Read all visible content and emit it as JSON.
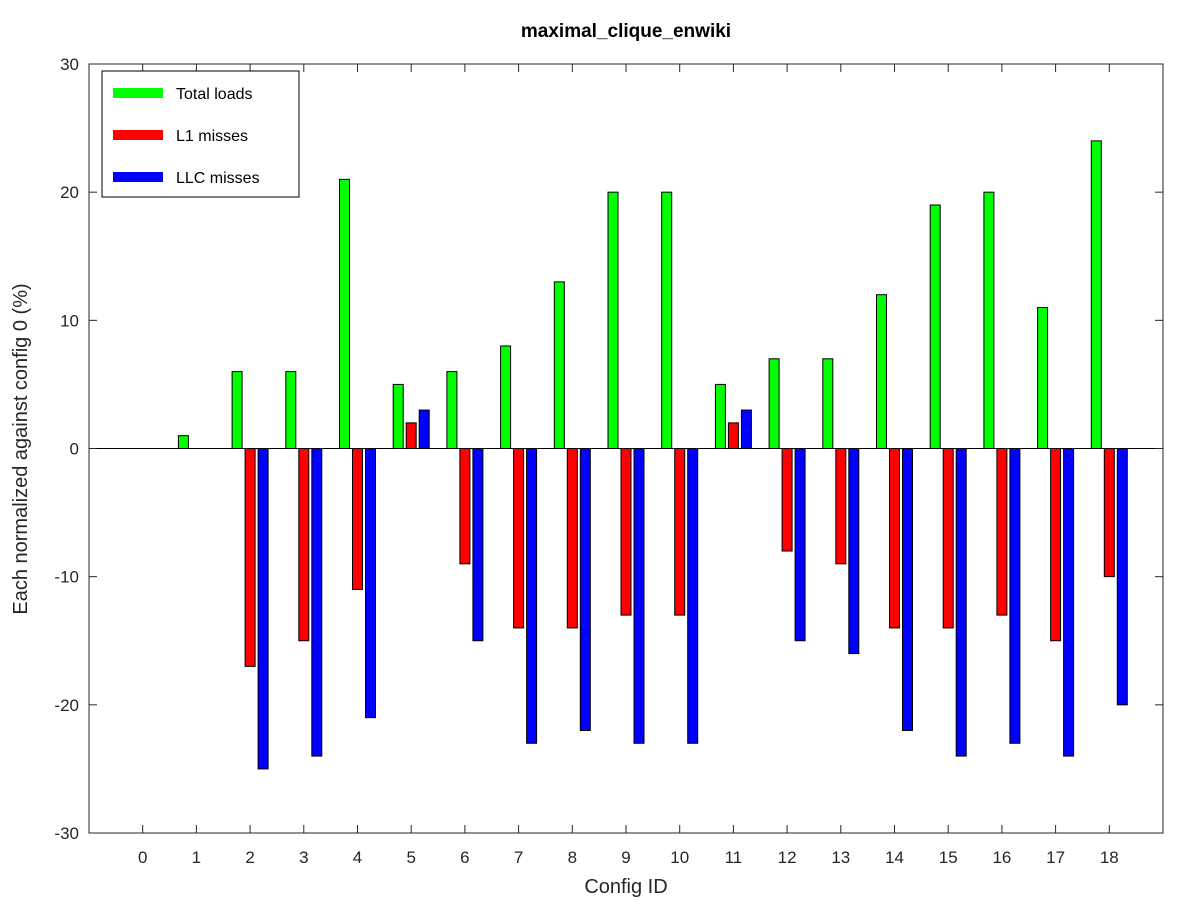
{
  "chart_data": {
    "type": "bar",
    "title": "maximal_clique_enwiki",
    "xlabel": "Config ID",
    "ylabel": "Each normalized against config 0 (%)",
    "categories": [
      "0",
      "1",
      "2",
      "3",
      "4",
      "5",
      "6",
      "7",
      "8",
      "9",
      "10",
      "11",
      "12",
      "13",
      "14",
      "15",
      "16",
      "17",
      "18"
    ],
    "ylim": [
      -30,
      30
    ],
    "yticks": [
      -30,
      -20,
      -10,
      0,
      10,
      20,
      30
    ],
    "grid": false,
    "legend_position": "top-left",
    "series": [
      {
        "name": "Total loads",
        "color": "#00ff00",
        "values": [
          0,
          1,
          6,
          6,
          21,
          5,
          6,
          8,
          13,
          20,
          20,
          5,
          7,
          7,
          12,
          19,
          20,
          11,
          24
        ]
      },
      {
        "name": "L1 misses",
        "color": "#ff0000",
        "values": [
          0,
          0,
          -17,
          -15,
          -11,
          2,
          -9,
          -14,
          -14,
          -13,
          -13,
          2,
          -8,
          -9,
          -14,
          -14,
          -13,
          -15,
          -10
        ]
      },
      {
        "name": "LLC misses",
        "color": "#0000ff",
        "values": [
          0,
          0,
          -25,
          -24,
          -21,
          3,
          -15,
          -23,
          -22,
          -23,
          -23,
          3,
          -15,
          -16,
          -22,
          -24,
          -23,
          -24,
          -20
        ]
      }
    ]
  }
}
